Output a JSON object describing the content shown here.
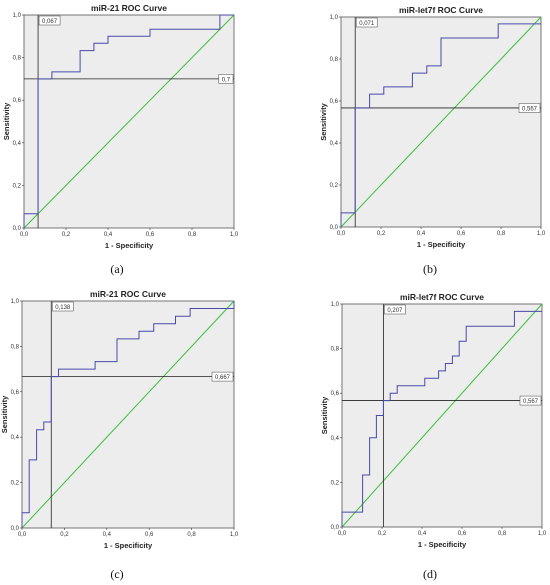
{
  "chart_data": [
    {
      "type": "line",
      "title": "miR-21 ROC Curve",
      "xlabel": "1 - Specificity",
      "ylabel": "Sensitivity",
      "xlim": [
        0,
        1
      ],
      "ylim": [
        0,
        1
      ],
      "xticks": [
        "0,0",
        "0,2",
        "0,4",
        "0,6",
        "0,8",
        "1,0"
      ],
      "yticks": [
        "0,0",
        "0,2",
        "0,4",
        "0,6",
        "0,8",
        "1,0"
      ],
      "grid": false,
      "panel_label": "(a)",
      "series": [
        {
          "x": [
            0,
            0,
            0.067,
            0.067,
            0.133,
            0.133,
            0.267,
            0.267,
            0.333,
            0.333,
            0.4,
            0.4,
            0.6,
            0.6,
            0.933,
            0.933,
            1.0
          ],
          "y": [
            0,
            0.067,
            0.067,
            0.7,
            0.7,
            0.733,
            0.733,
            0.833,
            0.833,
            0.867,
            0.867,
            0.9,
            0.9,
            0.933,
            0.933,
            1.0,
            1.0
          ]
        },
        {
          "x": [
            0,
            1
          ],
          "y": [
            0,
            1
          ]
        }
      ],
      "cutoff": {
        "x": 0.067,
        "y": 0.7,
        "x_label": "0,067",
        "y_label": "0,7"
      }
    },
    {
      "type": "line",
      "title": "miR-let7f ROC Curve",
      "xlabel": "1 - Specificity",
      "ylabel": "Sensitivity",
      "xlim": [
        0,
        1
      ],
      "ylim": [
        0,
        1
      ],
      "xticks": [
        "0,0",
        "0,2",
        "0,4",
        "0,6",
        "0,8",
        "1,0"
      ],
      "yticks": [
        "0,0",
        "0,2",
        "0,4",
        "0,6",
        "0,8",
        "1,0"
      ],
      "grid": false,
      "panel_label": "(b)",
      "series": [
        {
          "x": [
            0,
            0,
            0.071,
            0.071,
            0.143,
            0.143,
            0.214,
            0.214,
            0.357,
            0.357,
            0.429,
            0.429,
            0.5,
            0.5,
            0.786,
            0.786,
            1.0
          ],
          "y": [
            0,
            0.067,
            0.067,
            0.567,
            0.567,
            0.633,
            0.633,
            0.667,
            0.667,
            0.733,
            0.733,
            0.767,
            0.767,
            0.9,
            0.9,
            0.967,
            0.967
          ]
        },
        {
          "x": [
            0,
            1
          ],
          "y": [
            0,
            1
          ]
        }
      ],
      "cutoff": {
        "x": 0.071,
        "y": 0.567,
        "x_label": "0,071",
        "y_label": "0,567"
      }
    },
    {
      "type": "line",
      "title": "miR-21 ROC Curve",
      "xlabel": "1 - Specificity",
      "ylabel": "Sensitivity",
      "xlim": [
        0,
        1
      ],
      "ylim": [
        0,
        1
      ],
      "xticks": [
        "0,0",
        "0,2",
        "0,4",
        "0,6",
        "0,8",
        "1,0"
      ],
      "yticks": [
        "0,0",
        "0,2",
        "0,4",
        "0,6",
        "0,8",
        "1,0"
      ],
      "grid": false,
      "panel_label": "(c)",
      "series": [
        {
          "x": [
            0,
            0,
            0.034,
            0.034,
            0.069,
            0.069,
            0.103,
            0.103,
            0.138,
            0.138,
            0.172,
            0.172,
            0.345,
            0.345,
            0.448,
            0.448,
            0.552,
            0.552,
            0.621,
            0.621,
            0.724,
            0.724,
            0.793,
            0.793,
            1.0,
            1.0
          ],
          "y": [
            0,
            0.067,
            0.067,
            0.3,
            0.3,
            0.433,
            0.433,
            0.467,
            0.467,
            0.667,
            0.667,
            0.7,
            0.7,
            0.733,
            0.733,
            0.833,
            0.833,
            0.867,
            0.867,
            0.9,
            0.9,
            0.933,
            0.933,
            0.967,
            0.967,
            1.0
          ]
        },
        {
          "x": [
            0,
            1
          ],
          "y": [
            0,
            1
          ]
        }
      ],
      "cutoff": {
        "x": 0.138,
        "y": 0.667,
        "x_label": "0,138",
        "y_label": "0,667"
      }
    },
    {
      "type": "line",
      "title": "miR-let7f ROC Curve",
      "xlabel": "1 - Specificity",
      "ylabel": "Sensitivity",
      "xlim": [
        0,
        1
      ],
      "ylim": [
        0,
        1
      ],
      "xticks": [
        "0,0",
        "0,2",
        "0,4",
        "0,6",
        "0,8",
        "1,0"
      ],
      "yticks": [
        "0,0",
        "0,2",
        "0,4",
        "0,6",
        "0,8",
        "1,0"
      ],
      "grid": false,
      "panel_label": "(d)",
      "series": [
        {
          "x": [
            0,
            0,
            0.103,
            0.103,
            0.138,
            0.138,
            0.172,
            0.172,
            0.207,
            0.207,
            0.241,
            0.241,
            0.276,
            0.276,
            0.414,
            0.414,
            0.483,
            0.483,
            0.517,
            0.517,
            0.552,
            0.552,
            0.586,
            0.586,
            0.621,
            0.621,
            0.862,
            0.862,
            1.0
          ],
          "y": [
            0,
            0.067,
            0.067,
            0.233,
            0.233,
            0.4,
            0.4,
            0.5,
            0.5,
            0.567,
            0.567,
            0.6,
            0.6,
            0.633,
            0.633,
            0.667,
            0.667,
            0.7,
            0.7,
            0.733,
            0.733,
            0.767,
            0.767,
            0.833,
            0.833,
            0.9,
            0.9,
            0.967,
            0.967
          ]
        },
        {
          "x": [
            0,
            1
          ],
          "y": [
            0,
            1
          ]
        }
      ],
      "cutoff": {
        "x": 0.207,
        "y": 0.567,
        "x_label": "0,207",
        "y_label": "0,567"
      }
    }
  ],
  "colors": {
    "roc": "#4a4aa8",
    "reference": "#3cbf3c",
    "plot_bg": "#ededed",
    "cutoff": "#222222"
  }
}
